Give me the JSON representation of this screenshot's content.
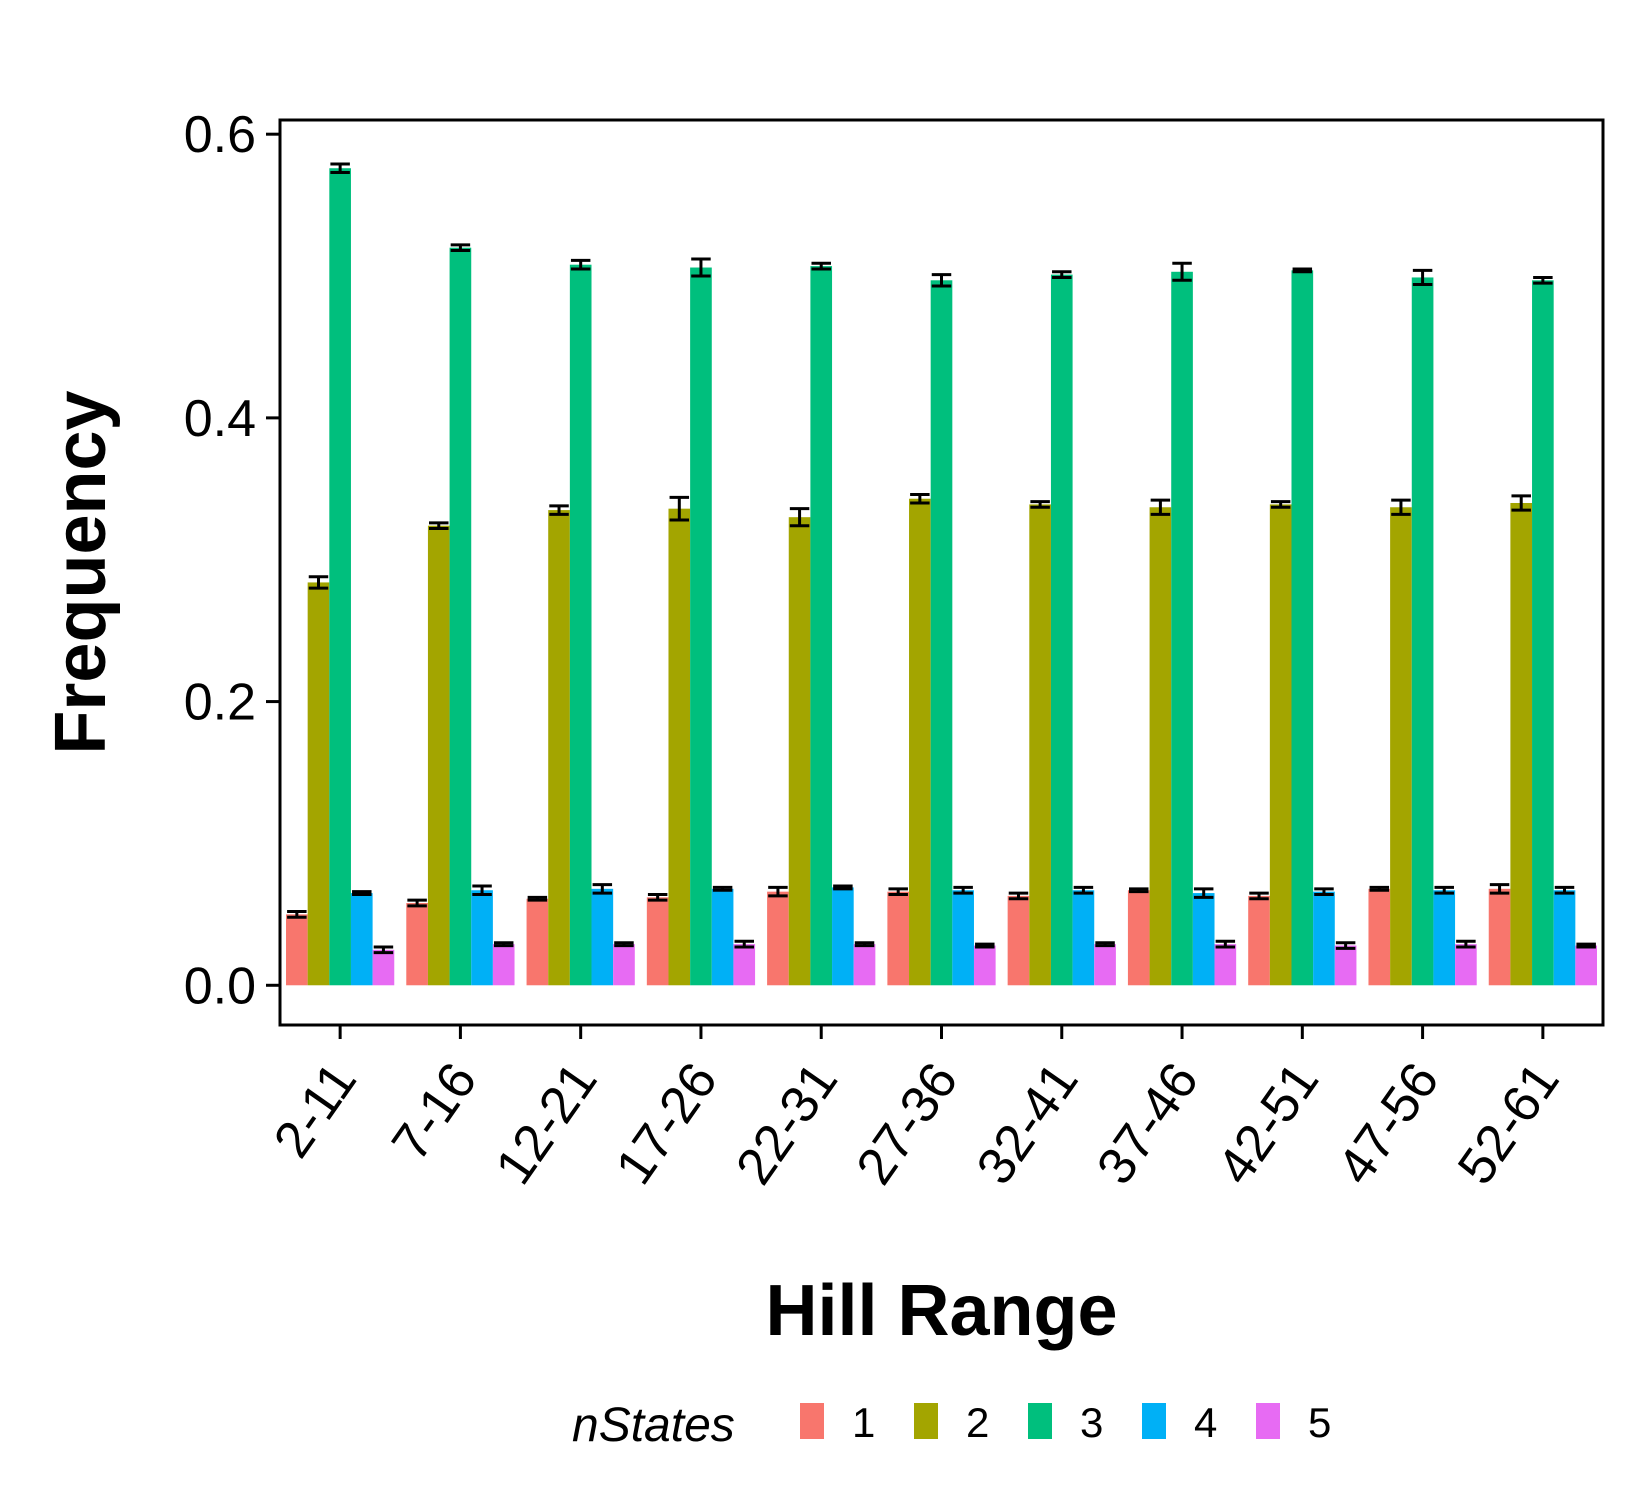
{
  "chart_data": {
    "type": "bar",
    "xlabel": "Hill Range",
    "ylabel": "Frequency",
    "ylim": [
      -0.028,
      0.61
    ],
    "yticks": [
      "0.0",
      "0.2",
      "0.4",
      "0.6"
    ],
    "ytick_values": [
      0.0,
      0.2,
      0.4,
      0.6
    ],
    "categories": [
      "2-11",
      "7-16",
      "12-21",
      "17-26",
      "22-31",
      "27-36",
      "32-41",
      "37-46",
      "42-51",
      "47-56",
      "52-61"
    ],
    "legend": {
      "title": "nStates",
      "placement": "bottom"
    },
    "grid": false,
    "error_bars": true,
    "series": [
      {
        "name": "1",
        "color": "#F8766D",
        "values": [
          0.05,
          0.058,
          0.061,
          0.062,
          0.066,
          0.066,
          0.063,
          0.067,
          0.063,
          0.068,
          0.068
        ],
        "errors": [
          0.002,
          0.002,
          0.001,
          0.002,
          0.003,
          0.002,
          0.002,
          0.001,
          0.002,
          0.001,
          0.003
        ]
      },
      {
        "name": "2",
        "color": "#A3A500",
        "values": [
          0.284,
          0.324,
          0.335,
          0.336,
          0.33,
          0.343,
          0.339,
          0.337,
          0.339,
          0.337,
          0.34
        ],
        "errors": [
          0.004,
          0.002,
          0.003,
          0.008,
          0.006,
          0.003,
          0.002,
          0.005,
          0.002,
          0.005,
          0.005
        ]
      },
      {
        "name": "3",
        "color": "#00BF7D",
        "values": [
          0.576,
          0.52,
          0.508,
          0.506,
          0.507,
          0.497,
          0.501,
          0.503,
          0.504,
          0.499,
          0.497
        ],
        "errors": [
          0.003,
          0.002,
          0.003,
          0.006,
          0.002,
          0.004,
          0.002,
          0.006,
          0.001,
          0.005,
          0.002
        ]
      },
      {
        "name": "4",
        "color": "#00B0F6",
        "values": [
          0.065,
          0.067,
          0.068,
          0.068,
          0.069,
          0.067,
          0.067,
          0.065,
          0.066,
          0.067,
          0.067
        ],
        "errors": [
          0.001,
          0.003,
          0.003,
          0.001,
          0.001,
          0.002,
          0.002,
          0.003,
          0.002,
          0.002,
          0.002
        ]
      },
      {
        "name": "5",
        "color": "#E76BF3",
        "values": [
          0.025,
          0.029,
          0.029,
          0.029,
          0.029,
          0.028,
          0.029,
          0.029,
          0.028,
          0.029,
          0.028
        ],
        "errors": [
          0.002,
          0.001,
          0.001,
          0.002,
          0.001,
          0.001,
          0.001,
          0.002,
          0.002,
          0.002,
          0.001
        ]
      }
    ]
  }
}
